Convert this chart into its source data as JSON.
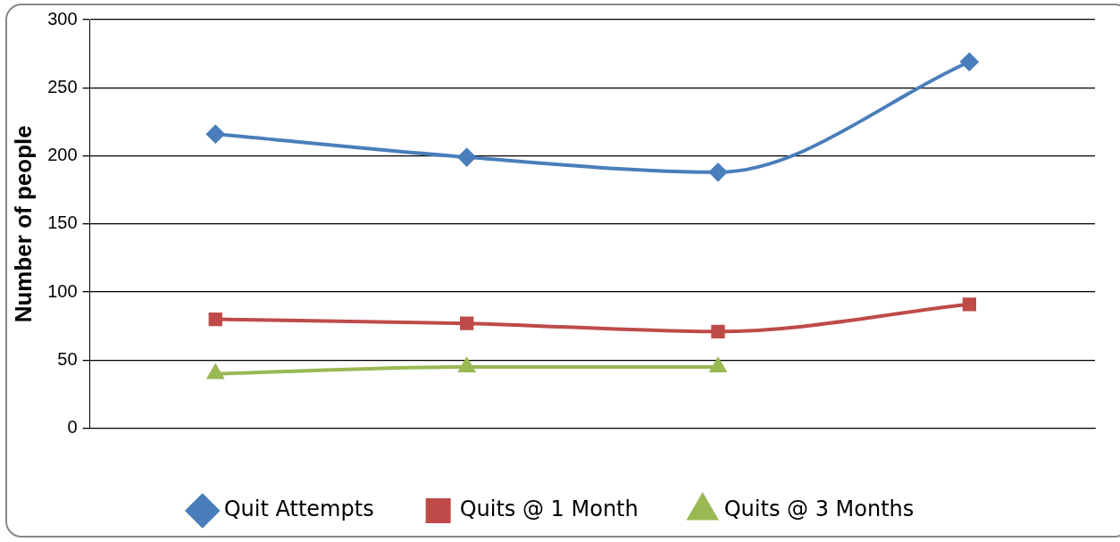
{
  "chart_data": {
    "type": "line",
    "ylabel": "Number of people",
    "categories": [
      null,
      null,
      null,
      null
    ],
    "series": [
      {
        "name": "Quit Attempts",
        "color": "#4a7ebb",
        "marker": "diamond",
        "values": [
          216,
          199,
          188,
          269
        ]
      },
      {
        "name": "Quits @ 1 Month",
        "color": "#be4b48",
        "marker": "square",
        "values": [
          80,
          77,
          71,
          91
        ]
      },
      {
        "name": "Quits @ 3 Months",
        "color": "#98b954",
        "marker": "triangle",
        "values": [
          40,
          45,
          45,
          null
        ]
      }
    ],
    "ylim": [
      0,
      300
    ],
    "yticks": [
      0,
      50,
      100,
      150,
      200,
      250,
      300
    ],
    "grid": "y",
    "legend": "bottom",
    "line_style": "solid"
  }
}
